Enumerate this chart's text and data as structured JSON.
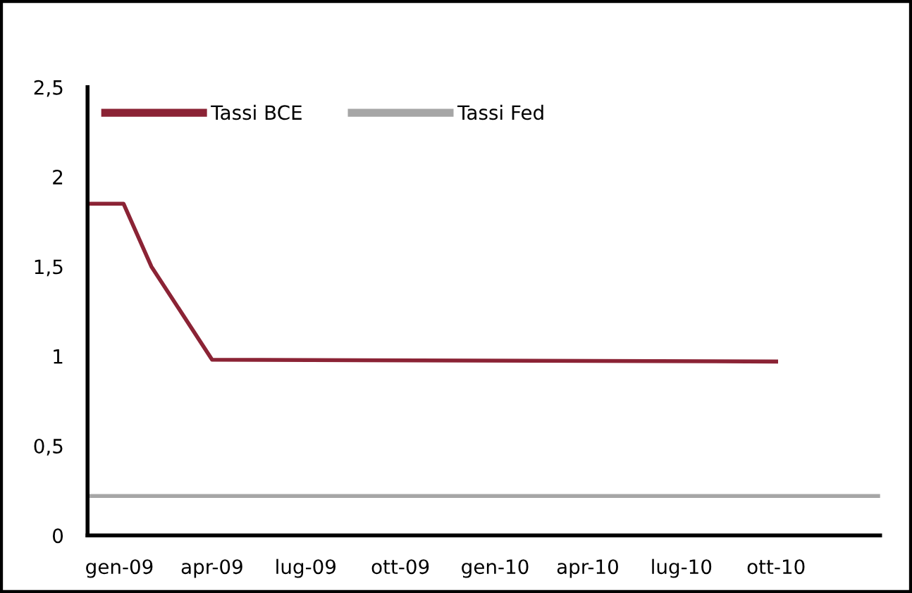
{
  "chart_data": {
    "type": "line",
    "series": [
      {
        "name": "Tassi BCE",
        "color": "#8b2335",
        "x": [
          "2008-12-01",
          "2009-01-05",
          "2009-02-01",
          "2009-04-01",
          "2010-10-01"
        ],
        "values": [
          1.85,
          1.85,
          1.5,
          0.98,
          0.97
        ]
      },
      {
        "name": "Tassi Fed",
        "color": "#a6a6a6",
        "x": [
          "2008-12-01",
          "2011-01-10"
        ],
        "values": [
          0.22,
          0.22
        ]
      }
    ],
    "xlim": [
      "2008-12-01",
      "2011-01-10"
    ],
    "xticks": [
      {
        "value": "2009-01-01",
        "label": "gen-09"
      },
      {
        "value": "2009-04-01",
        "label": "apr-09"
      },
      {
        "value": "2009-07-01",
        "label": "lug-09"
      },
      {
        "value": "2009-10-01",
        "label": "ott-09"
      },
      {
        "value": "2010-01-01",
        "label": "gen-10"
      },
      {
        "value": "2010-04-01",
        "label": "apr-10"
      },
      {
        "value": "2010-07-01",
        "label": "lug-10"
      },
      {
        "value": "2010-10-01",
        "label": "ott-10"
      }
    ],
    "ylim": [
      0,
      2.5
    ],
    "yticks": [
      {
        "value": 0,
        "label": "0"
      },
      {
        "value": 0.5,
        "label": "0,5"
      },
      {
        "value": 1,
        "label": "1"
      },
      {
        "value": 1.5,
        "label": "1,5"
      },
      {
        "value": 2,
        "label": "2"
      },
      {
        "value": 2.5,
        "label": "2,5"
      }
    ],
    "grid": false,
    "legend": "top left",
    "marker": "none",
    "line_style": "solid"
  }
}
